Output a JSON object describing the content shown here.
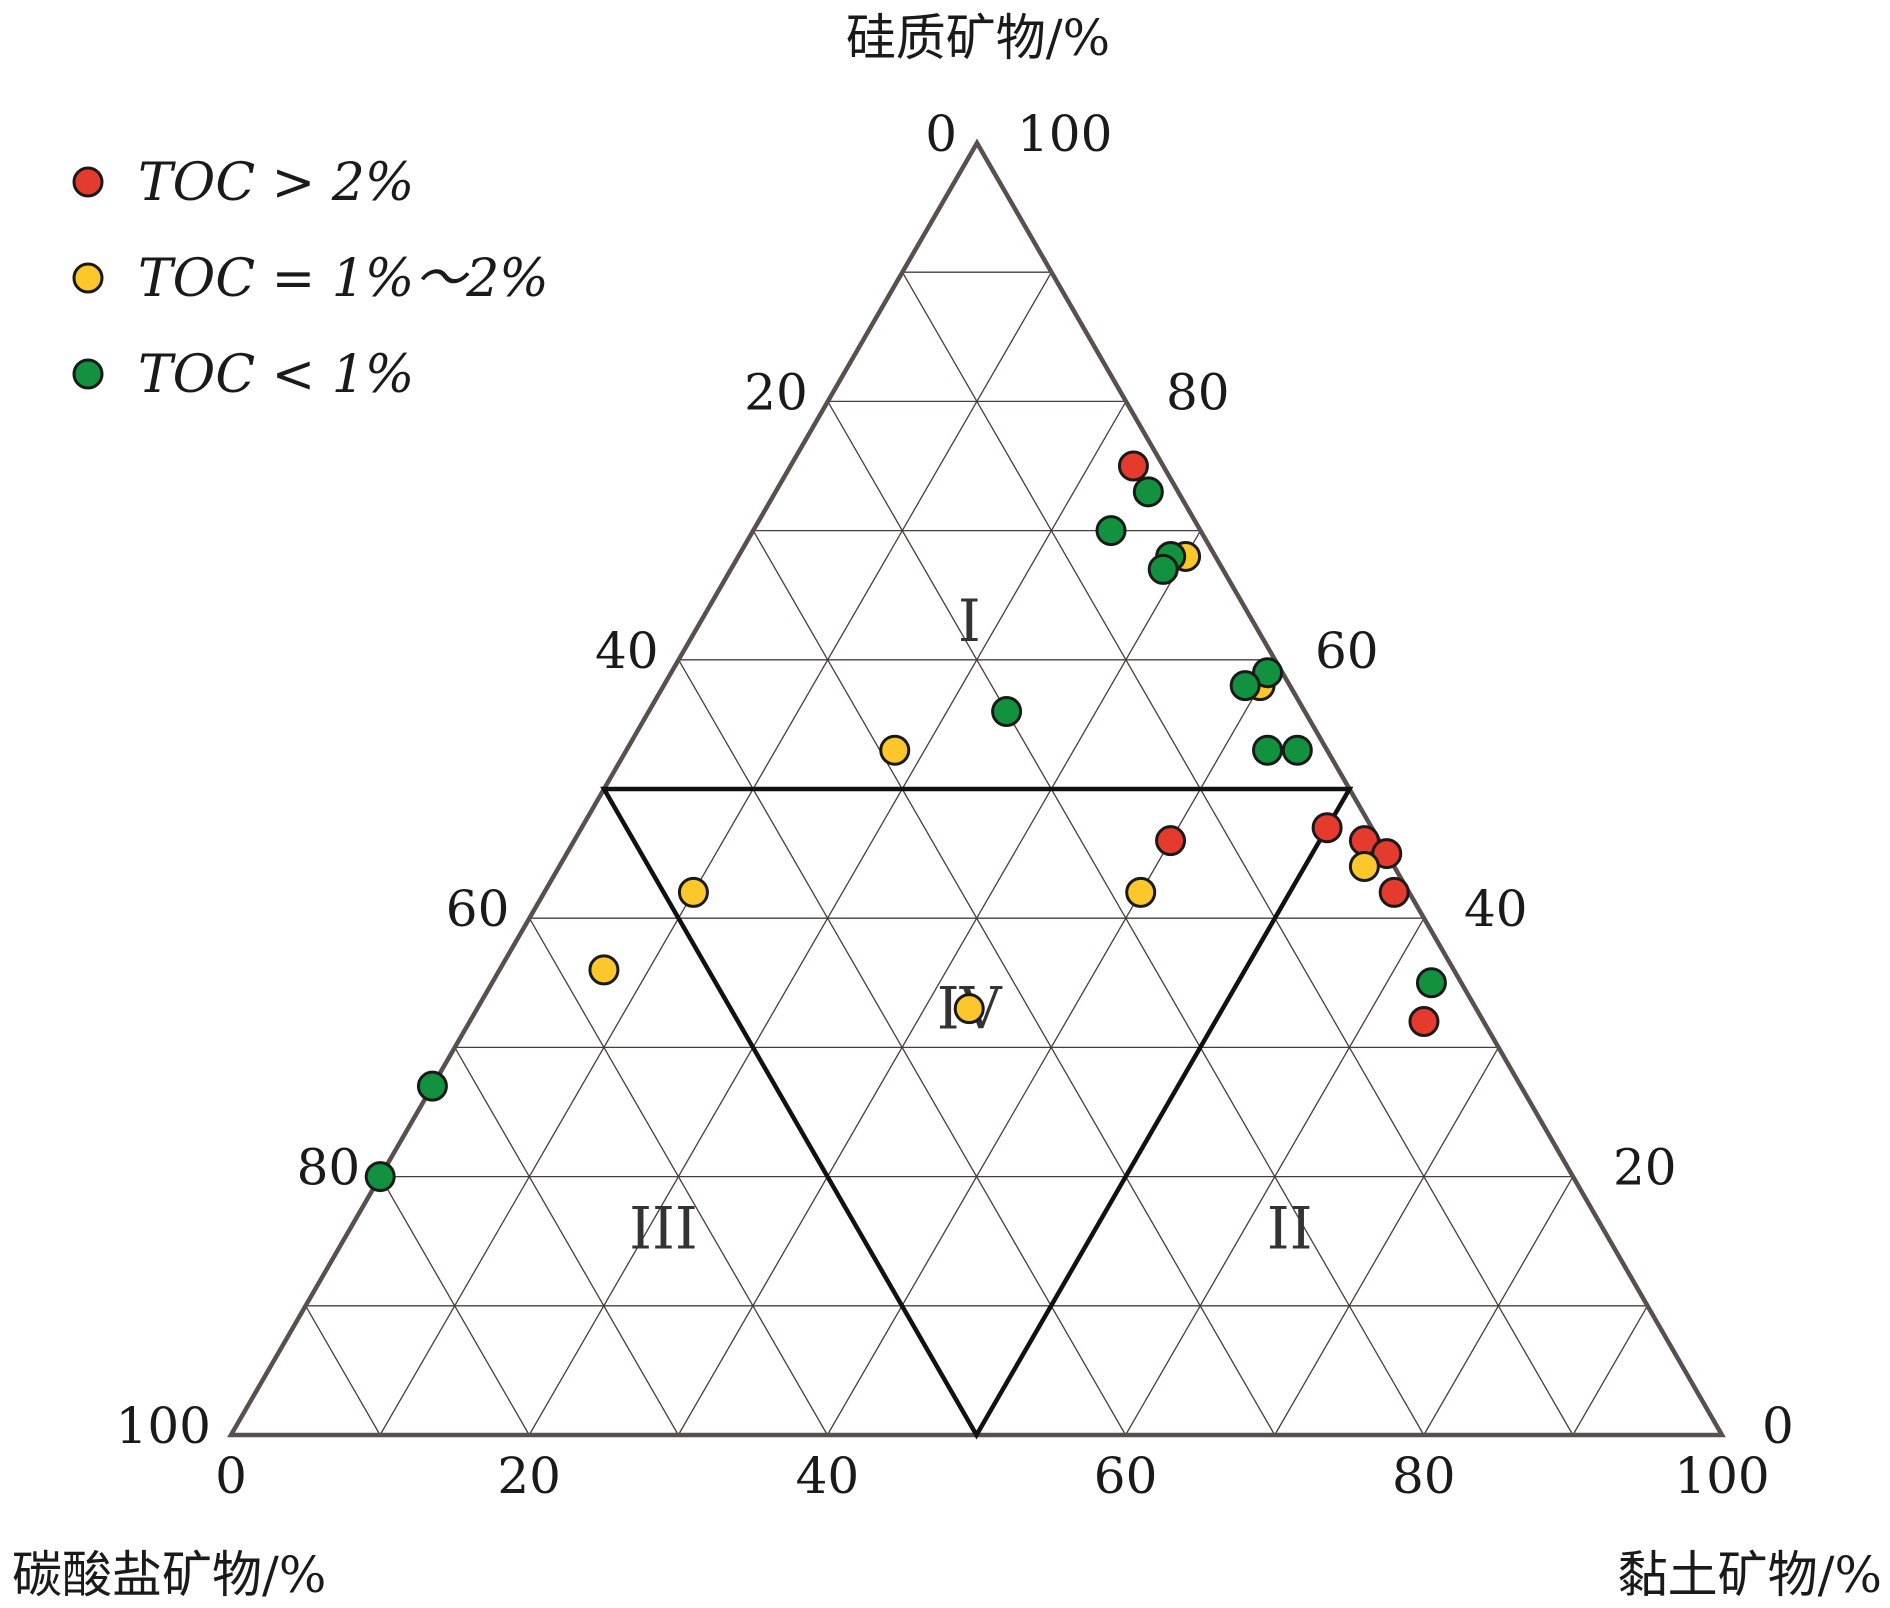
{
  "chart_data": {
    "type": "scatter",
    "subtype": "ternary",
    "axes": {
      "top": {
        "label": "硅质矿物/%",
        "ticks_left_edge": [
          "0",
          "20",
          "40",
          "60",
          "80",
          "100"
        ],
        "ticks_right_edge": [
          "100",
          "80",
          "60",
          "40",
          "20",
          "0"
        ]
      },
      "bottom": {
        "label": "黏土矿物/%",
        "ticks": [
          "0",
          "20",
          "40",
          "60",
          "80",
          "100"
        ]
      },
      "left": {
        "label": "碳酸盐矿物/%"
      }
    },
    "grid": true,
    "grid_step": 10,
    "legend_position": "top-left",
    "regions": [
      {
        "label": "I"
      },
      {
        "label": "II"
      },
      {
        "label": "III"
      },
      {
        "label": "IV"
      }
    ],
    "series": [
      {
        "name": "TOC > 2%",
        "color": "#e53a2e",
        "points": [
          {
            "siliceous": 75,
            "clay": 23
          },
          {
            "siliceous": 47,
            "clay": 50
          },
          {
            "siliceous": 46,
            "clay": 53
          },
          {
            "siliceous": 45,
            "clay": 55
          },
          {
            "siliceous": 42,
            "clay": 57
          },
          {
            "siliceous": 32,
            "clay": 64
          },
          {
            "siliceous": 46,
            "clay": 40
          }
        ]
      },
      {
        "name": "TOC = 1%～2%",
        "color": "#fcc72a",
        "points": [
          {
            "siliceous": 68,
            "clay": 30
          },
          {
            "siliceous": 58,
            "clay": 40
          },
          {
            "siliceous": 53,
            "clay": 18
          },
          {
            "siliceous": 44,
            "clay": 54
          },
          {
            "siliceous": 42,
            "clay": 10
          },
          {
            "siliceous": 36,
            "clay": 7
          },
          {
            "siliceous": 42,
            "clay": 40
          },
          {
            "siliceous": 33,
            "clay": 33
          }
        ]
      },
      {
        "name": "TOC < 1%",
        "color": "#12913f",
        "points": [
          {
            "siliceous": 73,
            "clay": 25
          },
          {
            "siliceous": 70,
            "clay": 24
          },
          {
            "siliceous": 68,
            "clay": 29
          },
          {
            "siliceous": 67,
            "clay": 29
          },
          {
            "siliceous": 59,
            "clay": 40
          },
          {
            "siliceous": 58,
            "clay": 39
          },
          {
            "siliceous": 56,
            "clay": 24
          },
          {
            "siliceous": 53,
            "clay": 43
          },
          {
            "siliceous": 53,
            "clay": 45
          },
          {
            "siliceous": 35,
            "clay": 63
          },
          {
            "siliceous": 27,
            "clay": 0
          },
          {
            "siliceous": 20,
            "clay": 0
          }
        ]
      }
    ]
  }
}
